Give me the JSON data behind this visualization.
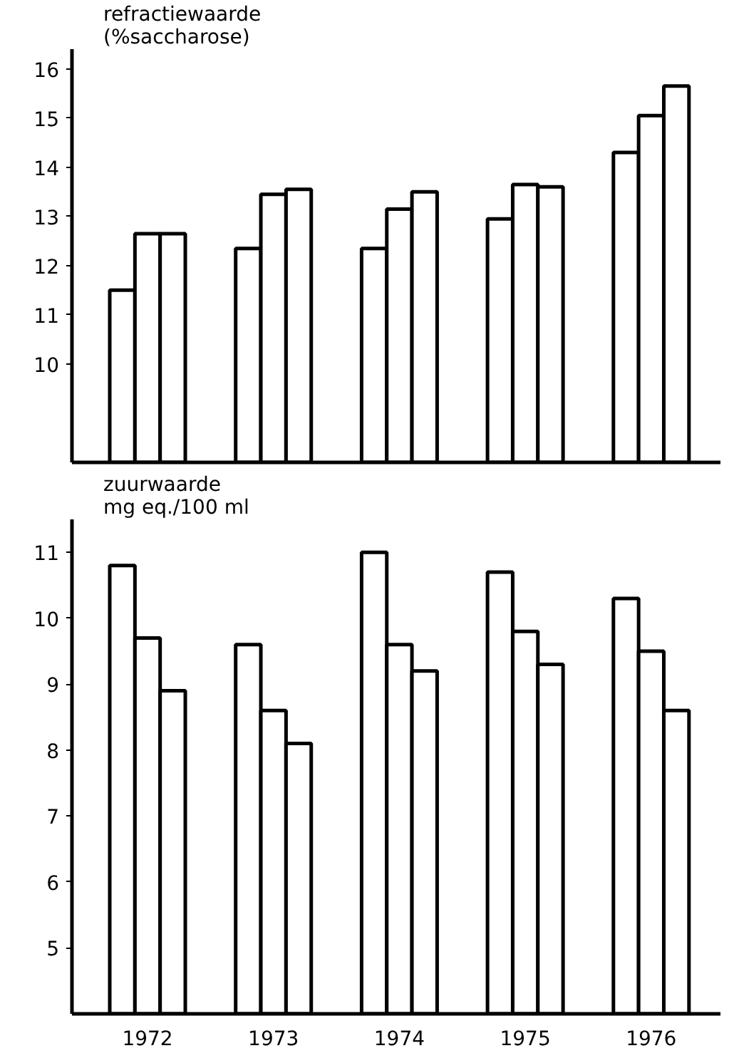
{
  "chart_data": [
    {
      "type": "bar",
      "ylabel": "refractiewaarde\n(%saccharose)",
      "categories": [
        "1972",
        "1973",
        "1974",
        "1975",
        "1976"
      ],
      "series": [
        {
          "color": "#ffffff",
          "values": [
            11.5,
            12.35,
            12.35,
            12.95,
            14.3
          ]
        },
        {
          "color": "#ffffff",
          "values": [
            12.65,
            13.45,
            13.15,
            13.65,
            15.05
          ]
        },
        {
          "color": "#ffffff",
          "values": [
            12.65,
            13.55,
            13.5,
            13.6,
            15.65
          ]
        }
      ],
      "ylim": [
        8,
        16.4
      ],
      "yticks": [
        10,
        11,
        12,
        13,
        14,
        15,
        16
      ],
      "tick_labels": "y",
      "grid": false
    },
    {
      "type": "bar",
      "ylabel": "zuurwaarde\nmg eq./100 ml",
      "categories": [
        "1972",
        "1973",
        "1974",
        "1975",
        "1976"
      ],
      "series": [
        {
          "color": "#ffffff",
          "values": [
            10.8,
            9.6,
            11.0,
            10.7,
            10.3
          ]
        },
        {
          "color": "#ffffff",
          "values": [
            9.7,
            8.6,
            9.6,
            9.8,
            9.5
          ]
        },
        {
          "color": "#ffffff",
          "values": [
            8.9,
            8.1,
            9.2,
            9.3,
            8.6
          ]
        }
      ],
      "ylim": [
        4,
        11.5
      ],
      "yticks": [
        5,
        6,
        7,
        8,
        9,
        10,
        11
      ],
      "grid": false
    }
  ]
}
